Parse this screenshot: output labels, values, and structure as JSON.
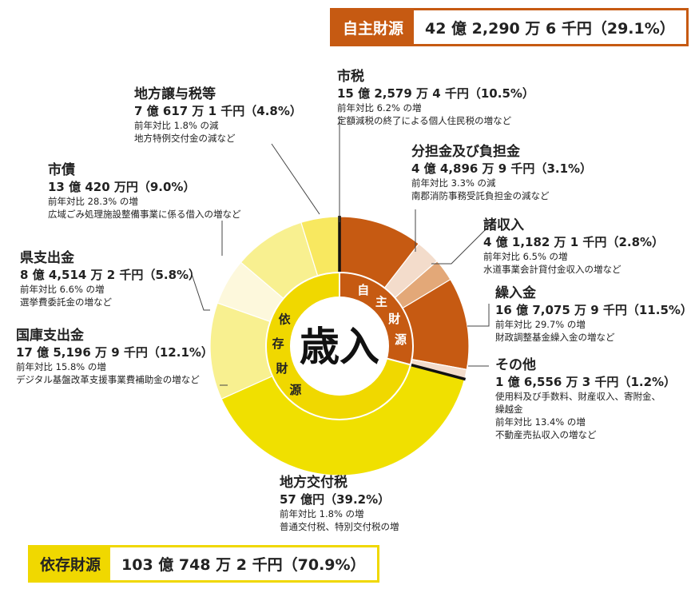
{
  "chart_data": {
    "type": "pie",
    "center_label": "歳入",
    "ring_labels": {
      "own": "自主財源",
      "dependent": "依存財源"
    },
    "colors": {
      "own": "#c65a12",
      "dependent": "#f0d800"
    },
    "groups": [
      {
        "name": "自主財源",
        "amount": "42 億 2,290 万 6 千円",
        "percent": "（29.1%）",
        "value": 29.1
      },
      {
        "name": "依存財源",
        "amount": "103 億 748 万 2 千円",
        "percent": "（70.9%）",
        "value": 70.9
      }
    ],
    "slices": [
      {
        "name": "市税",
        "group": "own",
        "value": 10.5,
        "color": "#c65a12",
        "amount": "15 億 2,579 万 4 千円",
        "percent": "（10.5%）",
        "notes": [
          "前年対比 6.2% の増",
          "定額減税の終了による個人住民税の増など"
        ]
      },
      {
        "name": "分担金及び負担金",
        "group": "own",
        "value": 3.1,
        "color": "#f3dccb",
        "amount": "4 億 4,896 万 9 千円",
        "percent": "（3.1%）",
        "notes": [
          "前年対比 3.3% の減",
          "南郡消防事務受託負担金の減など"
        ]
      },
      {
        "name": "諸収入",
        "group": "own",
        "value": 2.8,
        "color": "#e3a878",
        "amount": "4 億 1,182 万 1 千円",
        "percent": "（2.8%）",
        "notes": [
          "前年対比 6.5% の増",
          "水道事業会計貸付金収入の増など"
        ]
      },
      {
        "name": "繰入金",
        "group": "own",
        "value": 11.5,
        "color": "#c65a12",
        "amount": "16 億 7,075 万 9 千円",
        "percent": "（11.5%）",
        "notes": [
          "前年対比 29.7% の増",
          "財政調整基金繰入金の増など"
        ]
      },
      {
        "name": "その他",
        "group": "own",
        "value": 1.2,
        "color": "#f3dccb",
        "amount": "1 億 6,556 万 3 千円",
        "percent": "（1.2%）",
        "notes": [
          "使用料及び手数料、財産収入、寄附金、",
          "繰越金",
          "前年対比 13.4% の増",
          "不動産売払収入の増など"
        ]
      },
      {
        "name": "地方交付税",
        "group": "dependent",
        "value": 39.2,
        "color": "#f0e000",
        "amount": "57 億円",
        "percent": "（39.2%）",
        "notes": [
          "前年対比 1.8% の増",
          "普通交付税、特別交付税の増"
        ]
      },
      {
        "name": "国庫支出金",
        "group": "dependent",
        "value": 12.1,
        "color": "#f8f090",
        "amount": "17 億 5,196 万 9 千円",
        "percent": "（12.1%）",
        "notes": [
          "前年対比 15.8% の増",
          "デジタル基盤改革支援事業費補助金の増など"
        ]
      },
      {
        "name": "県支出金",
        "group": "dependent",
        "value": 5.8,
        "color": "#fdf8dc",
        "amount": "8 億 4,514 万 2 千円",
        "percent": "（5.8%）",
        "notes": [
          "前年対比 6.6% の増",
          "選挙費委託金の増など"
        ]
      },
      {
        "name": "市債",
        "group": "dependent",
        "value": 9.0,
        "color": "#f8f090",
        "amount": "13 億 420 万円",
        "percent": "（9.0%）",
        "notes": [
          "前年対比 28.3% の増",
          "広域ごみ処理施設整備事業に係る借入の増など"
        ]
      },
      {
        "name": "地方譲与税等",
        "group": "dependent",
        "value": 4.8,
        "color": "#f8e860",
        "amount": "7 億 617 万 1 千円",
        "percent": "（4.8%）",
        "notes": [
          "前年対比 1.8% の減",
          "地方特例交付金の減など"
        ]
      }
    ]
  }
}
